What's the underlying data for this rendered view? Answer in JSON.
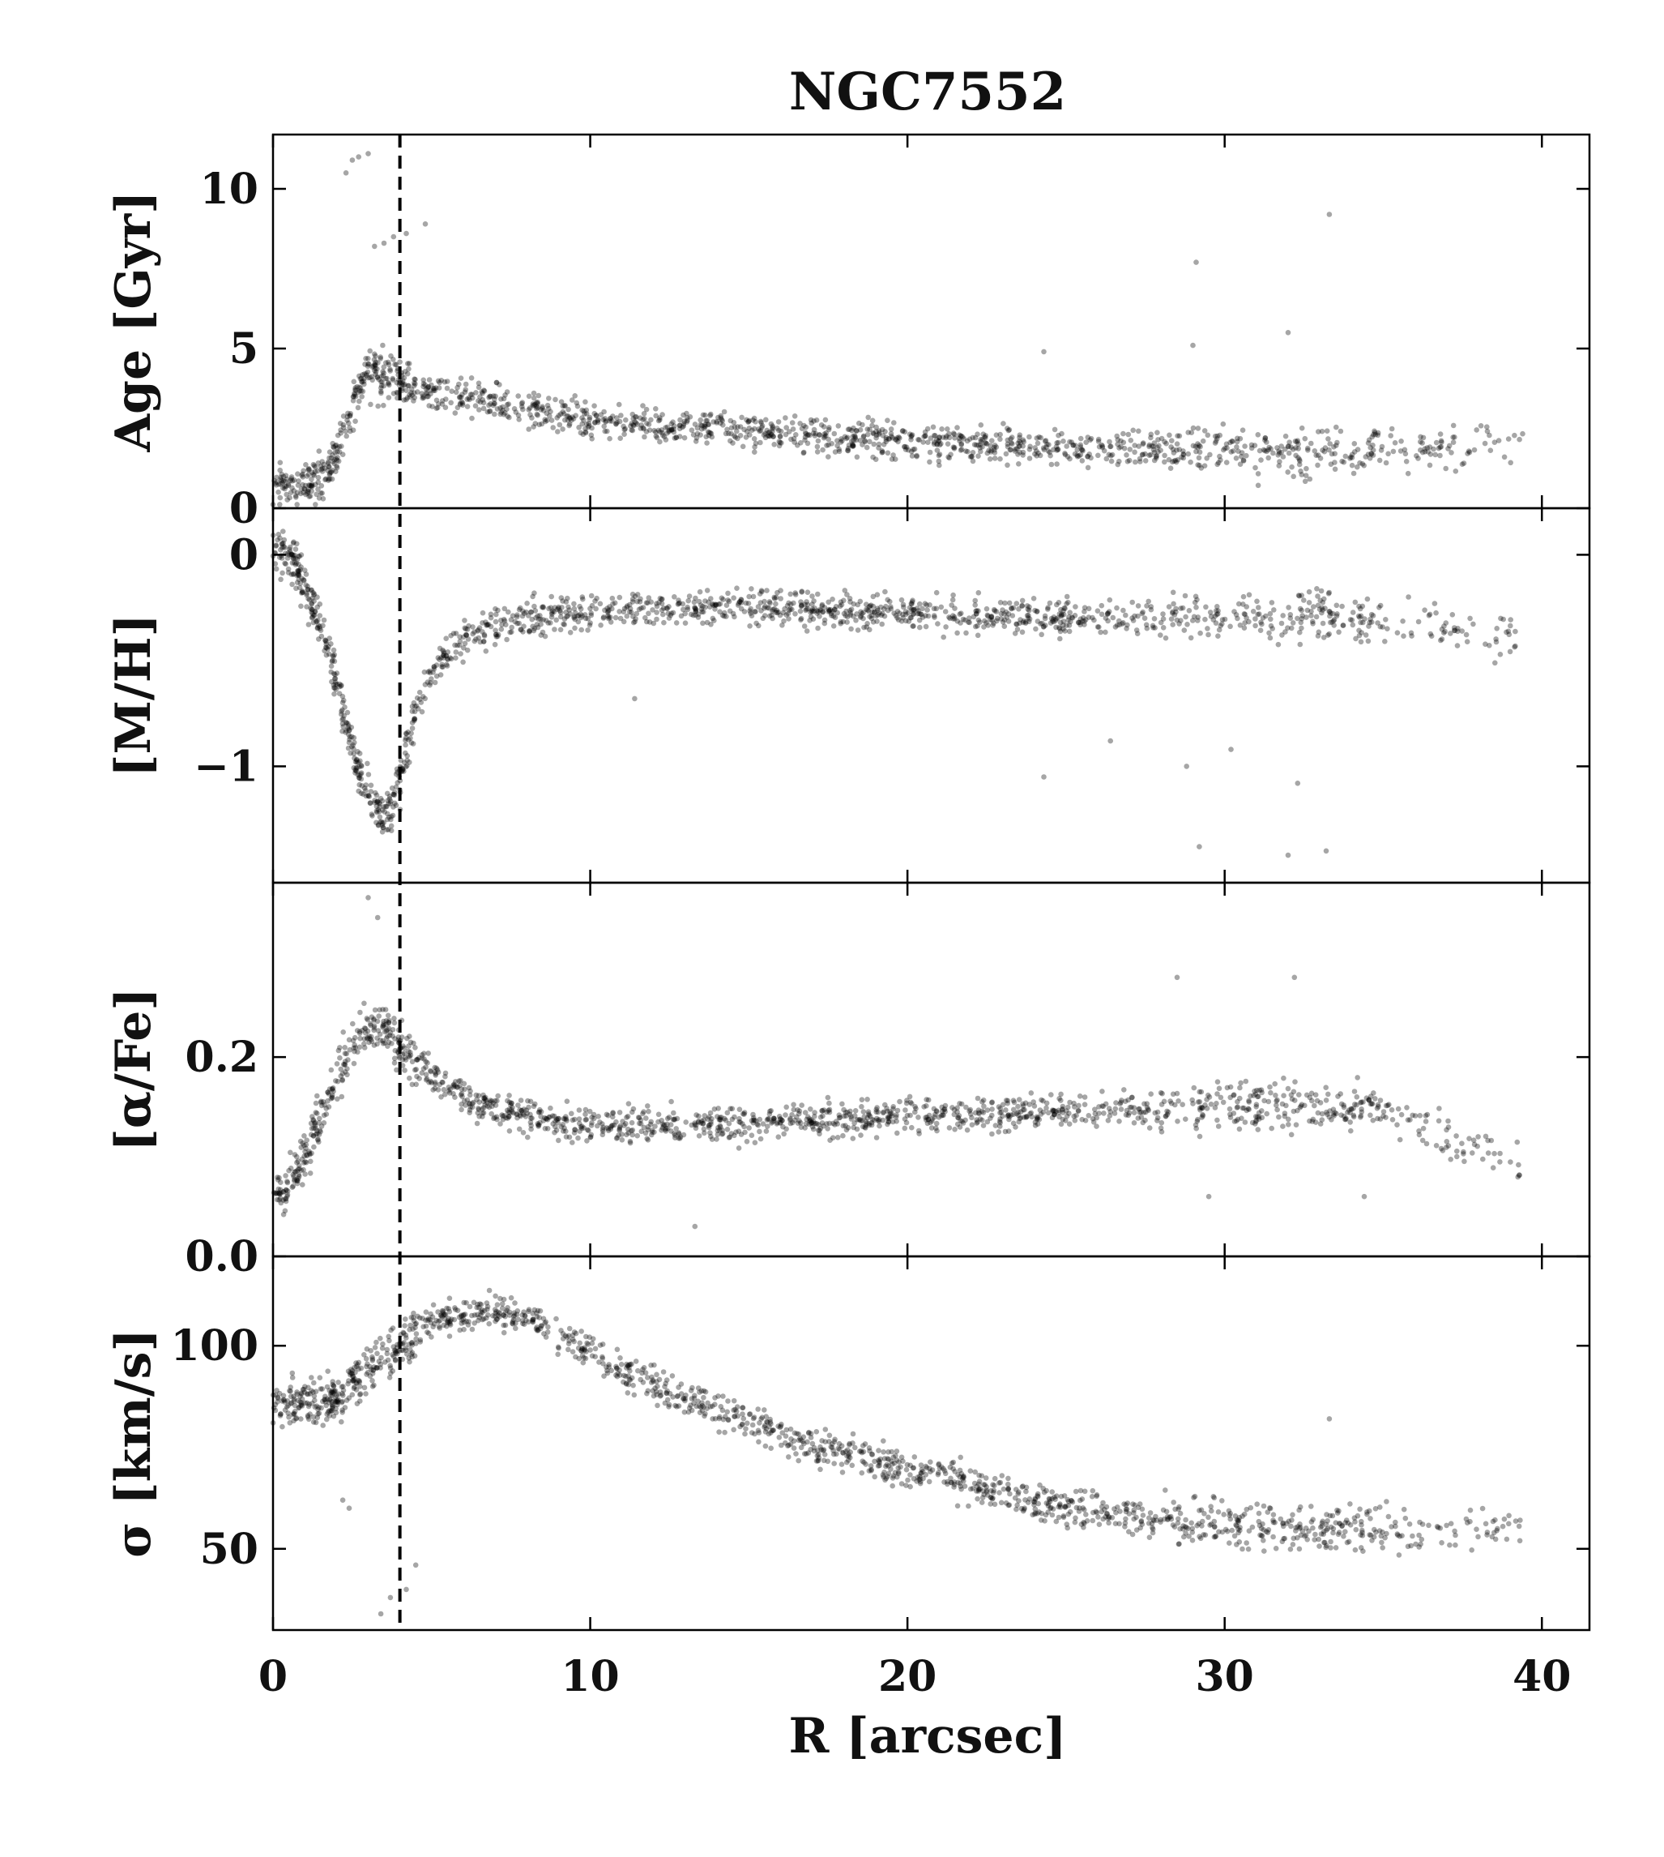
{
  "chart_data": {
    "type": "scatter",
    "title": "NGC7552",
    "xlabel": "R [arcsec]",
    "xlim": [
      0,
      41.5
    ],
    "x_ticks": [
      0,
      10,
      20,
      30,
      40
    ],
    "x_tick_labels": [
      "0",
      "10",
      "20",
      "30",
      "40"
    ],
    "shared_x": true,
    "marker_color": "#000000",
    "marker_opacity": 0.35,
    "reference_line": {
      "x": 4.0,
      "style": "dashed",
      "color": "#000000"
    },
    "panels": [
      {
        "key": "age",
        "ylabel": "Age [Gyr]",
        "ylim": [
          0,
          11.7
        ],
        "y_ticks": [
          0,
          5,
          10
        ],
        "y_tick_labels": [
          "0",
          "5",
          "10"
        ],
        "trend": [
          [
            0.0,
            0.9
          ],
          [
            0.5,
            0.8
          ],
          [
            1.0,
            0.75
          ],
          [
            1.5,
            0.9
          ],
          [
            2.0,
            1.6
          ],
          [
            2.5,
            3.2
          ],
          [
            3.0,
            4.3
          ],
          [
            3.5,
            4.2
          ],
          [
            4.0,
            4.0
          ],
          [
            4.5,
            3.8
          ],
          [
            5.0,
            3.6
          ],
          [
            6.0,
            3.5
          ],
          [
            7.0,
            3.3
          ],
          [
            8.0,
            3.1
          ],
          [
            10.0,
            2.8
          ],
          [
            12.0,
            2.6
          ],
          [
            15.0,
            2.4
          ],
          [
            18.0,
            2.2
          ],
          [
            20.0,
            2.1
          ],
          [
            25.0,
            1.9
          ],
          [
            30.0,
            1.8
          ],
          [
            35.0,
            1.8
          ],
          [
            39.4,
            1.9
          ]
        ],
        "outliers": [
          [
            2.3,
            10.5
          ],
          [
            2.5,
            10.9
          ],
          [
            2.7,
            11.0
          ],
          [
            3.0,
            11.1
          ],
          [
            3.2,
            8.2
          ],
          [
            3.5,
            8.3
          ],
          [
            3.8,
            8.5
          ],
          [
            4.2,
            8.6
          ],
          [
            4.8,
            8.9
          ],
          [
            29.1,
            7.7
          ],
          [
            33.3,
            9.2
          ],
          [
            32.0,
            5.5
          ],
          [
            24.3,
            4.9
          ],
          [
            29.0,
            5.1
          ]
        ]
      },
      {
        "key": "metallicity",
        "ylabel": "[M/H]",
        "ylim": [
          -1.55,
          0.22
        ],
        "y_ticks": [
          -1,
          0
        ],
        "y_tick_labels": [
          "−1",
          "0"
        ],
        "trend": [
          [
            0.0,
            0.05
          ],
          [
            0.5,
            0.0
          ],
          [
            1.0,
            -0.15
          ],
          [
            1.5,
            -0.35
          ],
          [
            2.0,
            -0.6
          ],
          [
            2.5,
            -0.9
          ],
          [
            3.0,
            -1.15
          ],
          [
            3.5,
            -1.25
          ],
          [
            4.0,
            -1.05
          ],
          [
            4.5,
            -0.75
          ],
          [
            5.0,
            -0.55
          ],
          [
            6.0,
            -0.4
          ],
          [
            8.0,
            -0.3
          ],
          [
            10.0,
            -0.27
          ],
          [
            15.0,
            -0.25
          ],
          [
            20.0,
            -0.28
          ],
          [
            25.0,
            -0.3
          ],
          [
            30.0,
            -0.3
          ],
          [
            35.0,
            -0.3
          ],
          [
            39.4,
            -0.4
          ]
        ],
        "outliers": [
          [
            24.3,
            -1.05
          ],
          [
            29.2,
            -1.38
          ],
          [
            32.0,
            -1.42
          ],
          [
            32.3,
            -1.08
          ],
          [
            33.2,
            -1.4
          ],
          [
            26.4,
            -0.88
          ],
          [
            30.2,
            -0.92
          ],
          [
            28.8,
            -1.0
          ],
          [
            11.4,
            -0.68
          ]
        ]
      },
      {
        "key": "alpha_fe",
        "ylabel": "[α/Fe]",
        "ylim": [
          0.0,
          0.375
        ],
        "y_ticks": [
          0.0,
          0.2
        ],
        "y_tick_labels": [
          "0.0",
          "0.2"
        ],
        "trend": [
          [
            0.0,
            0.06
          ],
          [
            0.5,
            0.07
          ],
          [
            1.0,
            0.1
          ],
          [
            1.5,
            0.14
          ],
          [
            2.0,
            0.18
          ],
          [
            2.5,
            0.21
          ],
          [
            3.0,
            0.23
          ],
          [
            3.5,
            0.23
          ],
          [
            4.0,
            0.21
          ],
          [
            5.0,
            0.18
          ],
          [
            6.0,
            0.16
          ],
          [
            8.0,
            0.14
          ],
          [
            10.0,
            0.13
          ],
          [
            15.0,
            0.135
          ],
          [
            20.0,
            0.14
          ],
          [
            25.0,
            0.145
          ],
          [
            30.0,
            0.15
          ],
          [
            35.0,
            0.15
          ],
          [
            39.4,
            0.09
          ]
        ],
        "outliers": [
          [
            3.0,
            0.36
          ],
          [
            3.3,
            0.34
          ],
          [
            28.5,
            0.28
          ],
          [
            32.2,
            0.28
          ],
          [
            13.3,
            0.03
          ],
          [
            34.4,
            0.06
          ],
          [
            29.5,
            0.06
          ]
        ]
      },
      {
        "key": "sigma",
        "ylabel": "σ [km/s]",
        "ylim": [
          30,
          122
        ],
        "y_ticks": [
          50,
          100
        ],
        "y_tick_labels": [
          "50",
          "100"
        ],
        "trend": [
          [
            0.0,
            86
          ],
          [
            1.0,
            86
          ],
          [
            2.0,
            87
          ],
          [
            3.0,
            94
          ],
          [
            4.0,
            100
          ],
          [
            5.0,
            106
          ],
          [
            6.0,
            108
          ],
          [
            8.0,
            107
          ],
          [
            10.0,
            98
          ],
          [
            12.0,
            90
          ],
          [
            15.0,
            81
          ],
          [
            18.0,
            73
          ],
          [
            20.0,
            70
          ],
          [
            22.0,
            66
          ],
          [
            25.0,
            60
          ],
          [
            28.0,
            57
          ],
          [
            30.0,
            56
          ],
          [
            33.0,
            55
          ],
          [
            35.0,
            55
          ],
          [
            39.4,
            54
          ]
        ],
        "outliers": [
          [
            3.4,
            34
          ],
          [
            3.7,
            38
          ],
          [
            4.2,
            40
          ],
          [
            4.5,
            46
          ],
          [
            33.3,
            82
          ],
          [
            2.2,
            62
          ],
          [
            2.4,
            60
          ]
        ]
      }
    ]
  }
}
